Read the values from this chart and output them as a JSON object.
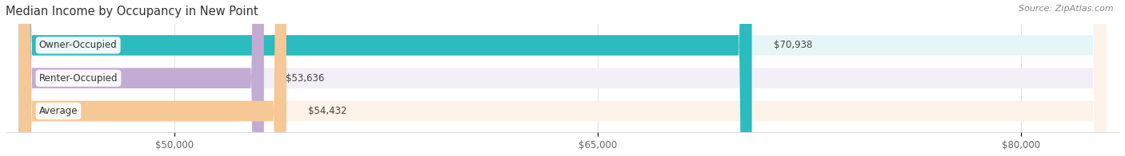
{
  "title": "Median Income by Occupancy in New Point",
  "source": "Source: ZipAtlas.com",
  "categories": [
    "Owner-Occupied",
    "Renter-Occupied",
    "Average"
  ],
  "values": [
    70938,
    53636,
    54432
  ],
  "labels": [
    "$70,938",
    "$53,636",
    "$54,432"
  ],
  "bar_colors": [
    "#2abcbe",
    "#c3acd3",
    "#f5c896"
  ],
  "bar_bg_colors": [
    "#e6f6f7",
    "#f2eff7",
    "#fdf3e8"
  ],
  "x_min": 44000,
  "x_max": 83500,
  "x_ticks": [
    50000,
    65000,
    80000
  ],
  "x_tick_labels": [
    "$50,000",
    "$65,000",
    "$80,000"
  ],
  "title_fontsize": 10.5,
  "source_fontsize": 8,
  "label_fontsize": 8.5,
  "bar_height": 0.62,
  "bar_gap": 0.38
}
